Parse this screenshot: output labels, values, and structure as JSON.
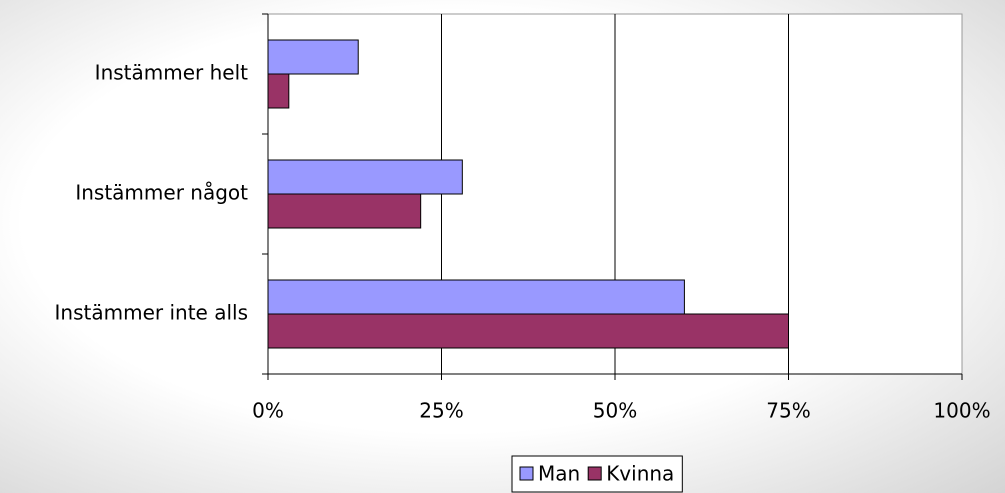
{
  "chart_data": {
    "type": "bar",
    "orientation": "horizontal",
    "categories": [
      "Instämmer helt",
      "Instämmer något",
      "Instämmer inte alls"
    ],
    "series": [
      {
        "name": "Man",
        "color": "#9999ff",
        "values": [
          13,
          28,
          60
        ]
      },
      {
        "name": "Kvinna",
        "color": "#993366",
        "values": [
          3,
          22,
          75
        ]
      }
    ],
    "xlim": [
      0,
      100
    ],
    "xticks": [
      {
        "value": 0,
        "label": "0%"
      },
      {
        "value": 25,
        "label": "25%"
      },
      {
        "value": 50,
        "label": "50%"
      },
      {
        "value": 75,
        "label": "75%"
      },
      {
        "value": 100,
        "label": "100%"
      }
    ],
    "grid": true,
    "legend": "bottom"
  }
}
